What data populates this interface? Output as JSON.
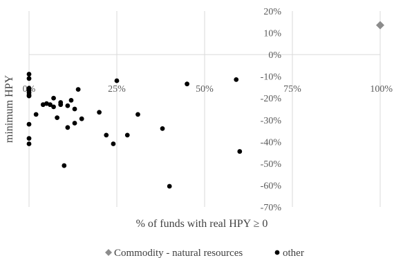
{
  "chart_data": {
    "type": "scatter",
    "xlabel": "% of funds with real HPY ≥ 0",
    "ylabel": "minimum HPY",
    "x_tick_labels": [
      "0%",
      "25%",
      "50%",
      "75%",
      "100%"
    ],
    "y_tick_labels": [
      "20%",
      "10%",
      "0%",
      "-10%",
      "-20%",
      "-30%",
      "-40%",
      "-50%",
      "-60%",
      "-70%"
    ],
    "xlim": [
      0,
      1.0
    ],
    "ylim": [
      -0.7,
      0.2
    ],
    "grid": {
      "x_major": true,
      "y_major": false
    },
    "legend_position": "bottom",
    "series": [
      {
        "name": "Commodity - natural resources",
        "marker": "diamond",
        "color": "#8c8c8c",
        "points": [
          {
            "x": 1.0,
            "y": 0.135
          }
        ]
      },
      {
        "name": "other",
        "marker": "circle",
        "color": "#000000",
        "points": [
          {
            "x": 0.0,
            "y": -0.09
          },
          {
            "x": 0.0,
            "y": -0.11
          },
          {
            "x": 0.0,
            "y": -0.155
          },
          {
            "x": 0.0,
            "y": -0.165
          },
          {
            "x": 0.0,
            "y": -0.175
          },
          {
            "x": 0.0,
            "y": -0.185
          },
          {
            "x": 0.0,
            "y": -0.19
          },
          {
            "x": 0.0,
            "y": -0.32
          },
          {
            "x": 0.0,
            "y": -0.385
          },
          {
            "x": 0.0,
            "y": -0.41
          },
          {
            "x": 0.02,
            "y": -0.275
          },
          {
            "x": 0.04,
            "y": -0.23
          },
          {
            "x": 0.05,
            "y": -0.225
          },
          {
            "x": 0.06,
            "y": -0.23
          },
          {
            "x": 0.07,
            "y": -0.24
          },
          {
            "x": 0.07,
            "y": -0.2
          },
          {
            "x": 0.08,
            "y": -0.29
          },
          {
            "x": 0.09,
            "y": -0.22
          },
          {
            "x": 0.09,
            "y": -0.23
          },
          {
            "x": 0.1,
            "y": -0.51
          },
          {
            "x": 0.11,
            "y": -0.235
          },
          {
            "x": 0.11,
            "y": -0.335
          },
          {
            "x": 0.12,
            "y": -0.21
          },
          {
            "x": 0.13,
            "y": -0.25
          },
          {
            "x": 0.13,
            "y": -0.315
          },
          {
            "x": 0.14,
            "y": -0.16
          },
          {
            "x": 0.15,
            "y": -0.295
          },
          {
            "x": 0.2,
            "y": -0.265
          },
          {
            "x": 0.22,
            "y": -0.37
          },
          {
            "x": 0.24,
            "y": -0.41
          },
          {
            "x": 0.25,
            "y": -0.12
          },
          {
            "x": 0.28,
            "y": -0.37
          },
          {
            "x": 0.31,
            "y": -0.275
          },
          {
            "x": 0.38,
            "y": -0.34
          },
          {
            "x": 0.4,
            "y": -0.605
          },
          {
            "x": 0.45,
            "y": -0.135
          },
          {
            "x": 0.59,
            "y": -0.115
          },
          {
            "x": 0.6,
            "y": -0.445
          }
        ]
      }
    ]
  }
}
